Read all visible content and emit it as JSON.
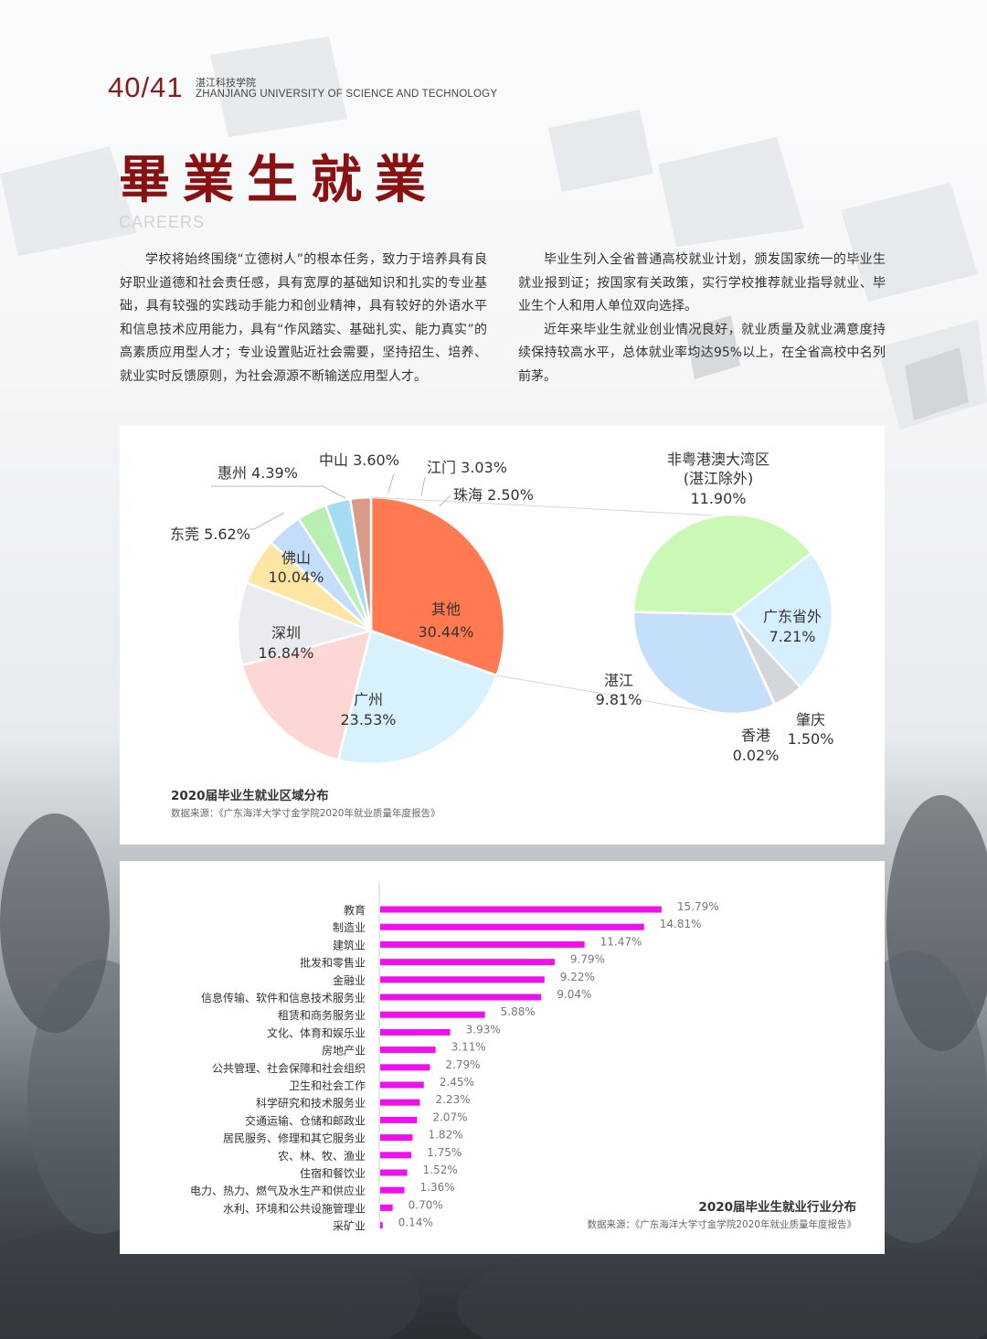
{
  "header": {
    "page_number": "40/41",
    "school_cn": "湛江科技学院",
    "school_en": "ZHANJIANG UNIVERSITY OF SCIENCE AND TECHNOLOGY"
  },
  "section": {
    "title_cn": "畢業生就業",
    "title_en": "CAREERS"
  },
  "body": {
    "left_paragraph": "学校将始终围绕“立德树人”的根本任务，致力于培养具有良好职业道德和社会责任感，具有宽厚的基础知识和扎实的专业基础，具有较强的实践动手能力和创业精神，具有较好的外语水平和信息技术应用能力，具有“作风踏实、基础扎实、能力真实”的高素质应用型人才；专业设置贴近社会需要，坚持招生、培养、就业实时反馈原则，为社会源源不断输送应用型人才。",
    "right_paragraph_1": "毕业生列入全省普通高校就业计划，颁发国家统一的毕业生就业报到证；按国家有关政策，实行学校推荐就业指导就业、毕业生个人和用人单位双向选择。",
    "right_paragraph_2": "近年来毕业生就业创业情况良好，就业质量及就业满意度持续保持较高水平，总体就业率均达95%以上，在全省高校中名列前茅。"
  },
  "chart_data": [
    {
      "type": "pie",
      "title": "2020届毕业生就业区域分布",
      "source": "数据来源：《广东海洋大学寸金学院2020年就业质量年度报告》",
      "slices": [
        {
          "name": "其他",
          "value": 30.44,
          "label": "30.44%",
          "color": "#ff7a50"
        },
        {
          "name": "广州",
          "value": 23.53,
          "label": "23.53%",
          "color": "#d8f2fd"
        },
        {
          "name": "深圳",
          "value": 16.84,
          "label": "16.84%",
          "color": "#fdd7d3"
        },
        {
          "name": "佛山",
          "value": 10.04,
          "label": "10.04%",
          "color": "#e9ebee"
        },
        {
          "name": "东莞",
          "value": 5.62,
          "label": "5.62%",
          "color": "#fde6a3"
        },
        {
          "name": "惠州",
          "value": 4.39,
          "label": "4.39%",
          "color": "#c3ddfb"
        },
        {
          "name": "中山",
          "value": 3.6,
          "label": "3.60%",
          "color": "#b9f0b2"
        },
        {
          "name": "江门",
          "value": 3.03,
          "label": "3.03%",
          "color": "#a5dcf3"
        },
        {
          "name": "珠海",
          "value": 2.5,
          "label": "2.50%",
          "color": "#d99a88"
        }
      ],
      "breakdown_of": "其他",
      "breakdown": [
        {
          "name": "非粤港澳大湾区\n(湛江除外)",
          "value": 11.9,
          "label": "11.90%",
          "color": "#c9f9b4"
        },
        {
          "name": "广东省外",
          "value": 7.21,
          "label": "7.21%",
          "color": "#d6efff"
        },
        {
          "name": "肇庆",
          "value": 1.5,
          "label": "1.50%",
          "color": "#d4d7d9"
        },
        {
          "name": "香港",
          "value": 0.02,
          "label": "0.02%",
          "color": "#ececec"
        },
        {
          "name": "湛江",
          "value": 9.81,
          "label": "9.81%",
          "color": "#c4dff9"
        }
      ]
    },
    {
      "type": "bar",
      "orientation": "horizontal",
      "title": "2020届毕业生就业行业分布",
      "source": "数据来源：《广东海洋大学寸金学院2020年就业质量年度报告》",
      "color": "#ee11ee",
      "categories": [
        "教育",
        "制造业",
        "建筑业",
        "批发和零售业",
        "金融业",
        "信息传输、软件和信息技术服务业",
        "租赁和商务服务业",
        "文化、体育和娱乐业",
        "房地产业",
        "公共管理、社会保障和社会组织",
        "卫生和社会工作",
        "科学研究和技术服务业",
        "交通运输、仓储和邮政业",
        "居民服务、修理和其它服务业",
        "农、林、牧、渔业",
        "住宿和餐饮业",
        "电力、热力、燃气及水生产和供应业",
        "水利、环境和公共设施管理业",
        "采矿业"
      ],
      "values": [
        15.79,
        14.81,
        11.47,
        9.79,
        9.22,
        9.04,
        5.88,
        3.93,
        3.11,
        2.79,
        2.45,
        2.23,
        2.07,
        1.82,
        1.75,
        1.52,
        1.36,
        0.7,
        0.14
      ],
      "labels": [
        "15.79%",
        "14.81%",
        "11.47%",
        "9.79%",
        "9.22%",
        "9.04%",
        "5.88%",
        "3.93%",
        "3.11%",
        "2.79%",
        "2.45%",
        "2.23%",
        "2.07%",
        "1.82%",
        "1.75%",
        "1.52%",
        "1.36%",
        "0.70%",
        "0.14%"
      ]
    }
  ]
}
